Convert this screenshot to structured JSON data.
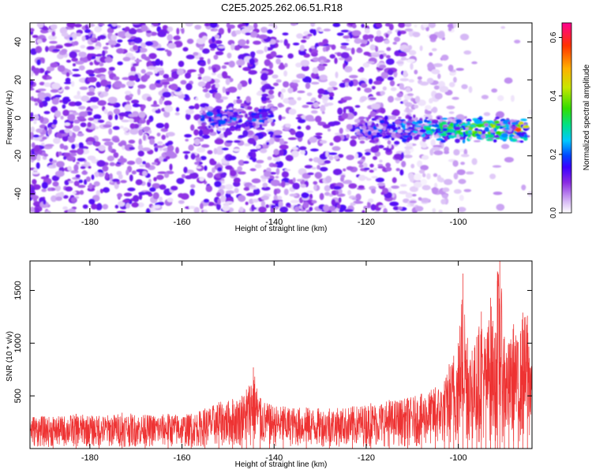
{
  "title": "C2E5.2025.262.06.51.R18",
  "chart_data": [
    {
      "type": "heatmap",
      "name": "spectrogram",
      "xlabel": "Height of straight line (km)",
      "ylabel": "Frequency (Hz)",
      "xlim": [
        -193,
        -84
      ],
      "ylim": [
        -50,
        50
      ],
      "xticks": [
        -180,
        -160,
        -140,
        -120,
        -100
      ],
      "yticks": [
        -40,
        -20,
        0,
        20,
        40
      ],
      "colorbar": {
        "label": "Normalized spectral amplitude",
        "range": [
          0.0,
          0.65
        ],
        "ticks": [
          0.0,
          0.2,
          0.4,
          0.6
        ],
        "tick_labels": [
          "0.0",
          "0.2",
          "0.4",
          "0.6"
        ],
        "colors": [
          "#ffffff",
          "#d6b8f5",
          "#8a2be2",
          "#3b00ff",
          "#0044ff",
          "#00c8ff",
          "#00e08a",
          "#33dd00",
          "#c8e600",
          "#ffb000",
          "#ff3300",
          "#ff0090"
        ]
      },
      "features": [
        {
          "x_start": -156,
          "x_end": -140,
          "freq_center": 0,
          "peak_amplitude": 0.25
        },
        {
          "x_start": -122,
          "x_end": -85,
          "freq_center": -6,
          "peak_amplitude": 0.6
        }
      ]
    },
    {
      "type": "line",
      "name": "snr",
      "xlabel": "Height of straight line (km)",
      "ylabel": "SNR (10 * v/v)",
      "xlim": [
        -193,
        -84
      ],
      "ylim": [
        0,
        1780
      ],
      "xticks": [
        -180,
        -160,
        -140,
        -120,
        -100
      ],
      "yticks": [
        500,
        1000,
        1500
      ],
      "color": "#ee3333",
      "x": [
        -193,
        -188,
        -183,
        -178,
        -173,
        -168,
        -163,
        -158,
        -155,
        -152,
        -149,
        -147,
        -146,
        -144.5,
        -143,
        -141,
        -138,
        -133,
        -128,
        -123,
        -119,
        -115,
        -111,
        -108,
        -105,
        -103,
        -102,
        -101,
        -100,
        -99,
        -98,
        -97,
        -96,
        -95,
        -94,
        -93,
        -92,
        -91.5,
        -91,
        -90,
        -89,
        -88,
        -87,
        -86,
        -85,
        -84
      ],
      "y": [
        320,
        300,
        330,
        310,
        340,
        320,
        330,
        330,
        380,
        440,
        470,
        500,
        560,
        770,
        480,
        420,
        400,
        390,
        380,
        400,
        430,
        460,
        480,
        520,
        580,
        640,
        800,
        880,
        1000,
        1660,
        1050,
        930,
        1060,
        1300,
        1040,
        1430,
        1100,
        1680,
        1780,
        1060,
        1000,
        1180,
        1010,
        1290,
        1260,
        1000
      ]
    }
  ]
}
